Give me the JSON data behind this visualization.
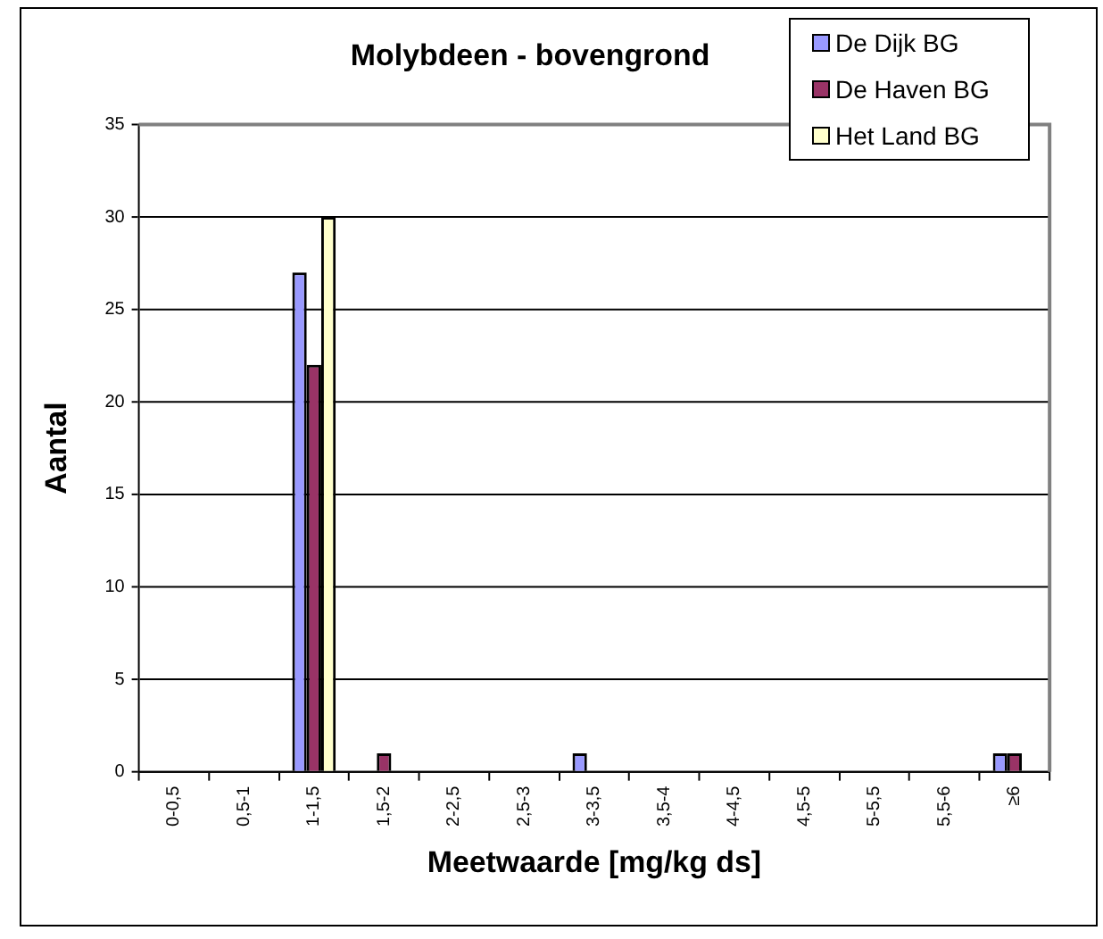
{
  "chart_data": {
    "type": "bar",
    "title": "Molybdeen - bovengrond",
    "xlabel": "Meetwaarde [mg/kg ds]",
    "ylabel": "Aantal",
    "categories": [
      "0-0,5",
      "0,5-1",
      "1-1,5",
      "1,5-2",
      "2-2,5",
      "2,5-3",
      "3-3,5",
      "3,5-4",
      "4-4,5",
      "4,5-5",
      "5-5,5",
      "5,5-6",
      "≥6"
    ],
    "series": [
      {
        "name": "De Dijk BG",
        "color": "#9999ff",
        "values": [
          0,
          0,
          27,
          0,
          0,
          0,
          1,
          0,
          0,
          0,
          0,
          0,
          1
        ]
      },
      {
        "name": "De Haven BG",
        "color": "#993366",
        "values": [
          0,
          0,
          22,
          1,
          0,
          0,
          0,
          0,
          0,
          0,
          0,
          0,
          1
        ]
      },
      {
        "name": "Het Land BG",
        "color": "#ffffcc",
        "values": [
          0,
          0,
          30,
          0,
          0,
          0,
          0,
          0,
          0,
          0,
          0,
          0,
          0
        ]
      }
    ],
    "ylim": [
      0,
      35
    ],
    "yticks": [
      0,
      5,
      10,
      15,
      20,
      25,
      30,
      35
    ],
    "grid": "y",
    "legend": "top right"
  }
}
